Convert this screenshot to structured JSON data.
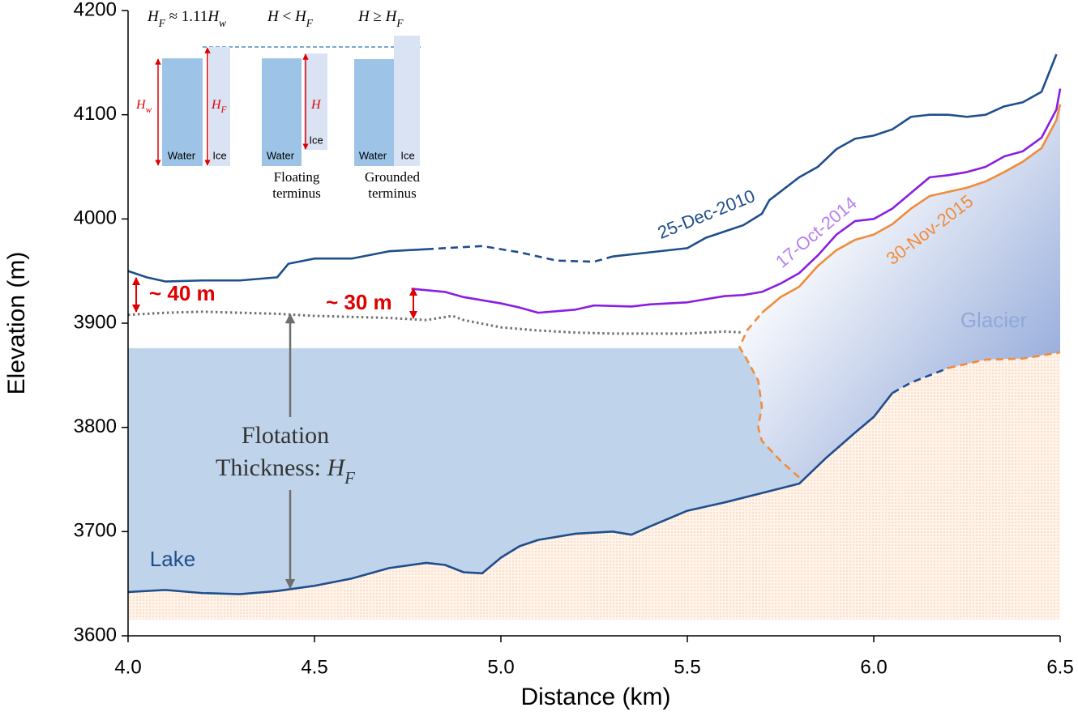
{
  "chart_data": {
    "type": "line",
    "xlabel": "Distance (km)",
    "ylabel": "Elevation (m)",
    "xlim": [
      4.0,
      6.5
    ],
    "ylim": [
      3600,
      4200
    ],
    "xticks": [
      {
        "value": 4,
        "label": "4.0"
      },
      4.5,
      {
        "value": 5,
        "label": "5.0"
      },
      5.5,
      {
        "value": 6,
        "label": "6.0"
      },
      6.5
    ],
    "yticks": [
      3600,
      3700,
      3800,
      3900,
      4000,
      4100,
      4200
    ],
    "lake_level": 3876,
    "series": [
      {
        "name": "25-Dec-2010",
        "color": "#1f4e8c",
        "dash": "solid",
        "x": [
          4.0,
          4.05,
          4.1,
          4.2,
          4.3,
          4.4,
          4.43,
          4.5,
          4.6,
          4.7,
          4.8,
          5.05,
          5.3,
          5.4,
          5.5,
          5.55,
          5.6,
          5.65,
          5.7,
          5.72,
          5.8,
          5.85,
          5.9,
          5.95,
          6.0,
          6.05,
          6.1,
          6.15,
          6.2,
          6.25,
          6.3,
          6.35,
          6.4,
          6.45,
          6.49
        ],
        "values": [
          3950,
          3944,
          3940,
          3941,
          3941,
          3944,
          3957,
          3962,
          3962,
          3969,
          3971,
          null,
          3964,
          3968,
          3972,
          3982,
          3988,
          3994,
          4005,
          4018,
          4040,
          4050,
          4067,
          4077,
          4080,
          4086,
          4098,
          4100,
          4100,
          4098,
          4100,
          4108,
          4112,
          4122,
          4158
        ]
      },
      {
        "color": "#1f4e8c",
        "dash": "dashed",
        "x": [
          4.8,
          4.9,
          4.95,
          5.05,
          5.15,
          5.25,
          5.3
        ],
        "values": [
          3971,
          3973,
          3974,
          3968,
          3960,
          3959,
          3964
        ]
      },
      {
        "name": "17-Oct-2014",
        "color": "#8a1ee0",
        "label_color": "#b77ff0",
        "dash": "solid",
        "x": [
          4.76,
          4.85,
          4.9,
          5.0,
          5.05,
          5.1,
          5.2,
          5.25,
          5.35,
          5.4,
          5.5,
          5.6,
          5.65,
          5.7,
          5.75,
          5.8,
          5.85,
          5.9,
          5.95,
          6.0,
          6.05,
          6.1,
          6.15,
          6.2,
          6.25,
          6.3,
          6.35,
          6.4,
          6.45,
          6.49,
          6.5
        ],
        "values": [
          3933,
          3930,
          3925,
          3919,
          3915,
          3910,
          3913,
          3917,
          3916,
          3918,
          3920,
          3926,
          3927,
          3930,
          3938,
          3948,
          3965,
          3985,
          3998,
          4000,
          4010,
          4025,
          4040,
          4042,
          4045,
          4050,
          4060,
          4065,
          4078,
          4105,
          4125
        ]
      },
      {
        "name": "30-Nov-2015",
        "color": "#f08c3c",
        "dash": "solid",
        "x": [
          5.7,
          5.75,
          5.8,
          5.85,
          5.9,
          5.95,
          6.0,
          6.05,
          6.1,
          6.15,
          6.2,
          6.25,
          6.3,
          6.35,
          6.4,
          6.45,
          6.49,
          6.5
        ],
        "values": [
          3910,
          3925,
          3935,
          3955,
          3970,
          3980,
          3985,
          3995,
          4010,
          4022,
          4026,
          4030,
          4036,
          4045,
          4055,
          4068,
          4095,
          4110
        ]
      },
      {
        "color": "#f08c3c",
        "dash": "dashed",
        "x": [
          5.8,
          5.75,
          5.7,
          5.69,
          5.7,
          5.69,
          5.66,
          5.64,
          5.66,
          5.7
        ],
        "values": [
          3752,
          3768,
          3787,
          3800,
          3820,
          3845,
          3865,
          3877,
          3893,
          3910
        ]
      },
      {
        "color": "#707070",
        "dash": "dotted",
        "x": [
          4.0,
          4.1,
          4.2,
          4.3,
          4.4,
          4.5,
          4.6,
          4.7,
          4.8,
          4.87,
          4.9,
          5.0,
          5.1,
          5.2,
          5.3,
          5.4,
          5.5,
          5.6,
          5.65
        ],
        "values": [
          3908,
          3910,
          3911,
          3910,
          3909,
          3907,
          3906,
          3905,
          3903,
          3907,
          3903,
          3896,
          3893,
          3891,
          3890,
          3890,
          3890,
          3892,
          3891
        ]
      },
      {
        "color": "#1f4e8c",
        "dash": "solid",
        "x": [
          4.0,
          4.1,
          4.2,
          4.3,
          4.4,
          4.5,
          4.6,
          4.7,
          4.8,
          4.85,
          4.9,
          4.95,
          5.0,
          5.05,
          5.1,
          5.2,
          5.3,
          5.35,
          5.4,
          5.5,
          5.6,
          5.7,
          5.8,
          5.87,
          5.95,
          6.0,
          6.05
        ],
        "values": [
          3642,
          3644,
          3641,
          3640,
          3643,
          3648,
          3655,
          3665,
          3670,
          3668,
          3661,
          3660,
          3675,
          3686,
          3692,
          3698,
          3700,
          3697,
          3705,
          3720,
          3728,
          3737,
          3746,
          3770,
          3795,
          3810,
          3833
        ]
      },
      {
        "color": "#1f4e8c",
        "dash": "dashed",
        "x": [
          6.05,
          6.1,
          6.2
        ],
        "values": [
          3833,
          3843,
          3857
        ]
      },
      {
        "color": "#f08c3c",
        "dash": "dashed",
        "x": [
          6.2,
          6.3,
          6.4,
          6.5
        ],
        "values": [
          3857,
          3865,
          3866,
          3872
        ]
      }
    ],
    "annotations": {
      "diff_2010": "~ 40 m",
      "diff_2014": "~ 30 m",
      "lake": "Lake",
      "glacier": "Glacier",
      "flotation_1": "Flotation",
      "flotation_2": [
        {
          "t": "Thickness: "
        },
        {
          "t": "H"
        },
        {
          "t": "F",
          "sub": true
        }
      ]
    },
    "inset": {
      "formulas": [
        [
          {
            "t": "H"
          },
          {
            "t": "F",
            "sub": true
          },
          {
            "t": " ≈ 1.11"
          },
          {
            "t": "H"
          },
          {
            "t": "w",
            "sub": true
          }
        ],
        [
          {
            "t": "H"
          },
          {
            "t": " < "
          },
          {
            "t": "H"
          },
          {
            "t": "F",
            "sub": true
          }
        ],
        [
          {
            "t": "H"
          },
          {
            "t": " ≥ "
          },
          {
            "t": "H"
          },
          {
            "t": "F",
            "sub": true
          }
        ]
      ],
      "water": "Water",
      "ice": "Ice",
      "height_labels": [
        [
          {
            "t": "H"
          },
          {
            "t": "w",
            "sub": true
          }
        ],
        [
          {
            "t": "H"
          },
          {
            "t": "F",
            "sub": true
          }
        ],
        [
          {
            "t": "H"
          }
        ]
      ],
      "captions": [
        [
          "Floating",
          "terminus"
        ],
        [
          "Grounded",
          "terminus"
        ]
      ]
    }
  }
}
